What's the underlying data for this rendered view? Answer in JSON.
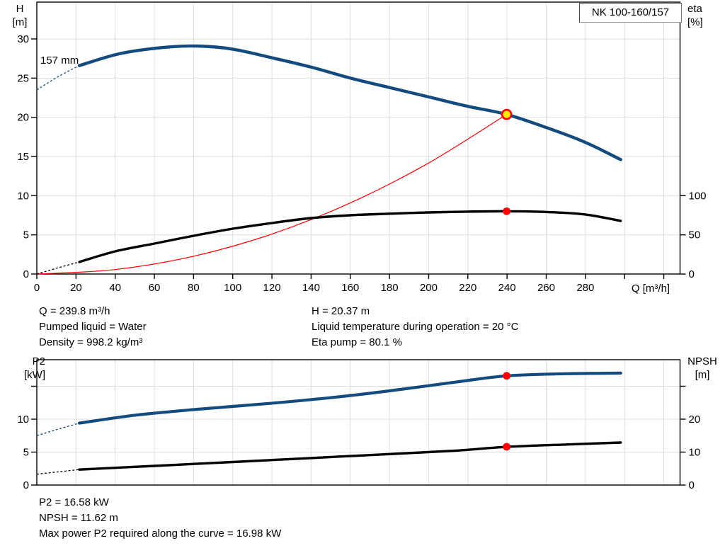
{
  "title_box": {
    "label": "NK 100-160/157"
  },
  "curve_label": "157 mm",
  "axis_titles": {
    "h_line1": "H",
    "h_line2": "[m]",
    "eta_line1": "eta",
    "eta_line2": "[%]",
    "q": "Q [m³/h]",
    "p2_line1": "P2",
    "p2_line2": "[kW]",
    "npsh_line1": "NPSH",
    "npsh_line2": "[m]"
  },
  "info_top": {
    "left": [
      "Q = 239.8 m³/h",
      "Pumped liquid = Water",
      "Density = 998.2 kg/m³"
    ],
    "right": [
      "H = 20.37 m",
      "Liquid temperature during operation = 20 °C",
      "Eta pump = 80.1 %"
    ]
  },
  "info_bottom": [
    "P2 = 16.58 kW",
    "NPSH = 11.62 m",
    "Max power P2 required along the curve = 16.98 kW"
  ],
  "colors": {
    "curve_blue": "#134b7f",
    "curve_black": "#000000",
    "system_red": "#ff0000",
    "marker_red": "#ff0000",
    "marker_yellow": "#ffeb00",
    "grid": "#dedede",
    "axis": "#000000"
  },
  "duty_point": {
    "q": 239.8,
    "h": 20.37,
    "eta": 80.1,
    "p2": 16.58,
    "npsh": 11.62
  },
  "chart_data": [
    {
      "name": "qh-chart",
      "type": "line",
      "title": "NK 100-160/157",
      "xlabel": "Q [m³/h]",
      "ylabel_left": "H [m]",
      "ylabel_right": "eta [%]",
      "xlim": [
        0,
        328
      ],
      "ylim_left": [
        0,
        34.7
      ],
      "ylim_right": [
        0,
        347
      ],
      "grid": true,
      "x_ticks": [
        {
          "v": 0,
          "label": "0"
        },
        {
          "v": 20,
          "label": "20"
        },
        {
          "v": 40,
          "label": "40"
        },
        {
          "v": 60,
          "label": "60"
        },
        {
          "v": 80,
          "label": "80"
        },
        {
          "v": 100,
          "label": "100"
        },
        {
          "v": 120,
          "label": "120"
        },
        {
          "v": 140,
          "label": "140"
        },
        {
          "v": 160,
          "label": "160"
        },
        {
          "v": 180,
          "label": "180"
        },
        {
          "v": 200,
          "label": "200"
        },
        {
          "v": 220,
          "label": "220"
        },
        {
          "v": 240,
          "label": "240"
        },
        {
          "v": 260,
          "label": "260"
        },
        {
          "v": 280,
          "label": "280"
        },
        {
          "v": 300,
          "label": ""
        },
        {
          "v": 320,
          "label": ""
        }
      ],
      "y_ticks_left": [
        {
          "v": 0,
          "label": "0"
        },
        {
          "v": 5,
          "label": "5"
        },
        {
          "v": 10,
          "label": "10"
        },
        {
          "v": 15,
          "label": "15"
        },
        {
          "v": 20,
          "label": "20"
        },
        {
          "v": 25,
          "label": "25"
        },
        {
          "v": 30,
          "label": "30"
        }
      ],
      "y_ticks_right": [
        {
          "v": 0,
          "label": "0"
        },
        {
          "v": 50,
          "label": "50"
        },
        {
          "v": 100,
          "label": "100"
        }
      ],
      "series": [
        {
          "name": "system-curve",
          "axis": "left",
          "color": "#ff0000",
          "width": 1.2,
          "points": [
            [
              0,
              0
            ],
            [
              40,
              0.57
            ],
            [
              80,
              2.27
            ],
            [
              120,
              5.1
            ],
            [
              160,
              9.07
            ],
            [
              200,
              14.17
            ],
            [
              239.8,
              20.37
            ]
          ]
        },
        {
          "name": "eta-curve",
          "axis": "right",
          "color": "#000000",
          "width": 3.4,
          "lead": [
            [
              0,
              0
            ],
            [
              11,
              8
            ],
            [
              21.7,
              15.4
            ]
          ],
          "points": [
            [
              21.7,
              15.4
            ],
            [
              40,
              28.9
            ],
            [
              60,
              38.9
            ],
            [
              80,
              48.8
            ],
            [
              100,
              57.8
            ],
            [
              120,
              65.1
            ],
            [
              140,
              71.4
            ],
            [
              160,
              75
            ],
            [
              180,
              77
            ],
            [
              200,
              78.6
            ],
            [
              220,
              79.6
            ],
            [
              239.8,
              80.1
            ],
            [
              260,
              79.2
            ],
            [
              280,
              76
            ],
            [
              298,
              67.8
            ]
          ]
        },
        {
          "name": "head-curve",
          "axis": "left",
          "color": "#134b7f",
          "width": 4.4,
          "lead": [
            [
              0,
              23.5
            ],
            [
              11,
              25.2
            ],
            [
              21.7,
              26.6
            ]
          ],
          "points": [
            [
              21.7,
              26.6
            ],
            [
              42,
              28.1
            ],
            [
              64,
              28.9
            ],
            [
              82,
              29.1
            ],
            [
              100,
              28.7
            ],
            [
              120,
              27.6
            ],
            [
              140,
              26.4
            ],
            [
              160,
              25
            ],
            [
              180,
              23.8
            ],
            [
              200,
              22.6
            ],
            [
              220,
              21.4
            ],
            [
              239.8,
              20.37
            ],
            [
              260,
              18.7
            ],
            [
              280,
              16.8
            ],
            [
              298,
              14.6
            ]
          ]
        }
      ],
      "markers": [
        {
          "name": "duty-point-marker",
          "q": 239.8,
          "v": 20.37,
          "axis": "left",
          "fill": "#ffeb00",
          "stroke": "#ff0000",
          "sw": 2.6,
          "r": 6.5,
          "interactable": true
        },
        {
          "name": "eta-duty-marker",
          "q": 239.8,
          "v": 80.1,
          "axis": "right",
          "fill": "#ff0000",
          "r": 5.4,
          "interactable": true
        }
      ]
    },
    {
      "name": "power-npsh-chart",
      "type": "line",
      "title": "",
      "xlabel": "",
      "ylabel_left": "P2 [kW]",
      "ylabel_right": "NPSH [m]",
      "xlim": [
        0,
        328
      ],
      "ylim_left": [
        0,
        19
      ],
      "ylim_right": [
        0,
        38.1
      ],
      "grid": true,
      "x_ticks": [
        {
          "v": 20,
          "label": ""
        },
        {
          "v": 40,
          "label": ""
        },
        {
          "v": 60,
          "label": ""
        },
        {
          "v": 80,
          "label": ""
        },
        {
          "v": 100,
          "label": ""
        },
        {
          "v": 120,
          "label": ""
        },
        {
          "v": 140,
          "label": ""
        },
        {
          "v": 160,
          "label": ""
        },
        {
          "v": 180,
          "label": ""
        },
        {
          "v": 200,
          "label": ""
        },
        {
          "v": 220,
          "label": ""
        },
        {
          "v": 240,
          "label": ""
        },
        {
          "v": 260,
          "label": ""
        },
        {
          "v": 280,
          "label": ""
        },
        {
          "v": 300,
          "label": ""
        },
        {
          "v": 320,
          "label": ""
        }
      ],
      "y_ticks_left": [
        {
          "v": 0,
          "label": "0"
        },
        {
          "v": 5,
          "label": "5"
        },
        {
          "v": 10,
          "label": "10"
        },
        {
          "v": 15,
          "label": ""
        }
      ],
      "y_ticks_right": [
        {
          "v": 0,
          "label": "0"
        },
        {
          "v": 10,
          "label": "10"
        },
        {
          "v": 20,
          "label": "20"
        },
        {
          "v": 30,
          "label": ""
        }
      ],
      "series": [
        {
          "name": "npsh-curve",
          "axis": "right",
          "color": "#000000",
          "width": 3.4,
          "lead": [
            [
              0,
              3.3
            ],
            [
              11,
              4
            ],
            [
              21.7,
              4.7
            ]
          ],
          "points": [
            [
              21.7,
              4.7
            ],
            [
              60,
              5.8
            ],
            [
              100,
              7
            ],
            [
              140,
              8.2
            ],
            [
              180,
              9.4
            ],
            [
              213,
              10.4
            ],
            [
              239.8,
              11.6
            ],
            [
              270,
              12.3
            ],
            [
              298,
              12.9
            ]
          ]
        },
        {
          "name": "p2-curve",
          "axis": "left",
          "color": "#134b7f",
          "width": 4.2,
          "lead": [
            [
              0,
              7.5
            ],
            [
              11,
              8.5
            ],
            [
              21.7,
              9.4
            ]
          ],
          "points": [
            [
              21.7,
              9.4
            ],
            [
              50,
              10.6
            ],
            [
              82,
              11.5
            ],
            [
              119,
              12.4
            ],
            [
              151,
              13.3
            ],
            [
              180,
              14.3
            ],
            [
              213,
              15.6
            ],
            [
              239.8,
              16.58
            ],
            [
              270,
              16.9
            ],
            [
              298,
              17
            ]
          ]
        }
      ],
      "markers": [
        {
          "name": "p2-duty-marker",
          "q": 239.8,
          "v": 16.58,
          "axis": "left",
          "fill": "#ff0000",
          "r": 5.4,
          "interactable": true
        },
        {
          "name": "npsh-duty-marker",
          "q": 239.8,
          "v": 11.62,
          "axis": "right",
          "fill": "#ff0000",
          "r": 5.4,
          "interactable": true
        }
      ]
    }
  ]
}
